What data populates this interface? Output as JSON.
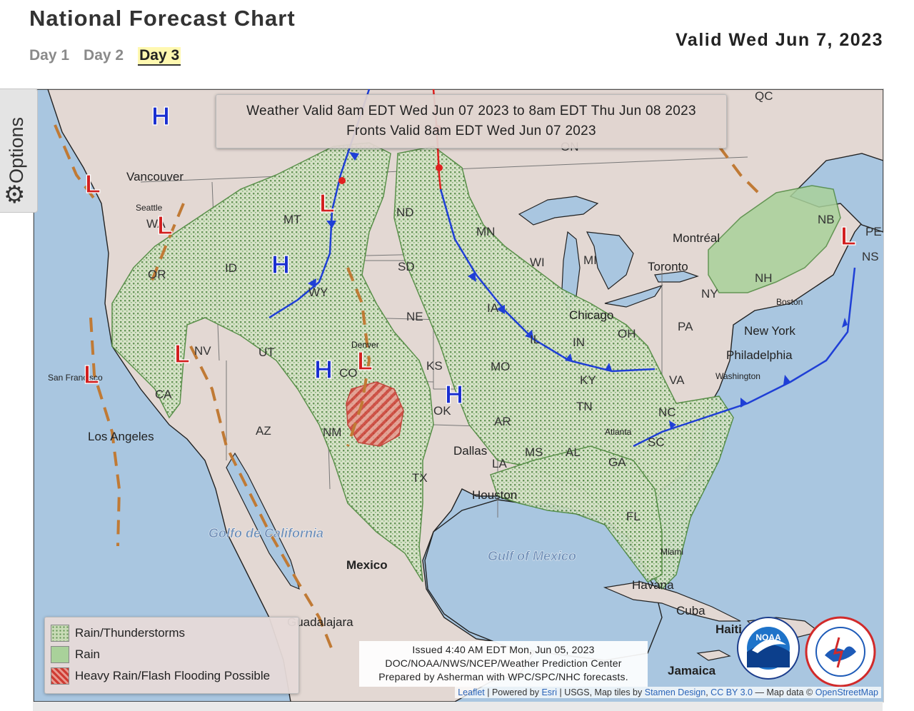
{
  "header": {
    "title": "National Forecast Chart",
    "valid": "Valid Wed Jun 7, 2023",
    "tabs": [
      {
        "label": "Day 1",
        "active": false
      },
      {
        "label": "Day 2",
        "active": false
      },
      {
        "label": "Day 3",
        "active": true
      }
    ]
  },
  "options": {
    "label": "Options",
    "icon": "gear-icon"
  },
  "info_box": {
    "line1": "Weather Valid 8am EDT Wed Jun 07 2023 to 8am EDT Thu Jun 08 2023",
    "line2": "Fronts Valid 8am EDT Wed Jun 07 2023"
  },
  "legend": {
    "items": [
      {
        "label": "Rain/Thunderstorms",
        "color": "#7fb46f"
      },
      {
        "label": "Rain",
        "color": "#a9d19a"
      },
      {
        "label": "Heavy Rain/Flash Flooding Possible",
        "color": "#d9534f"
      }
    ]
  },
  "issued": {
    "line1": "Issued 4:40 AM EDT Mon, Jun 05, 2023",
    "line2": "DOC/NOAA/NWS/NCEP/Weather Prediction Center",
    "line3": "Prepared by Asherman with WPC/SPC/NHC forecasts."
  },
  "attribution": {
    "leaflet": "Leaflet",
    "powered": "| Powered by",
    "esri": "Esri",
    "rest": "| USGS, Map tiles by",
    "stamen": "Stamen Design",
    "cc": "CC BY 3.0",
    "mapdata": "— Map data ©",
    "osm": "OpenStreetMap"
  },
  "logos": {
    "noaa": "NOAA",
    "nws": "NATIONAL WEATHER SERVICE"
  },
  "colors": {
    "water": "#a9c6e0",
    "land": "#e3d8d3",
    "rain_storms": "#7fb46f",
    "rain": "#a9d19a",
    "heavy_rain": "#d9534f",
    "cold_front": "#1f3fd6",
    "warm_front": "#e0211f",
    "trough": "#c07a35",
    "high": "#1a2fd0",
    "low": "#d21f1f"
  },
  "pressure_centers": [
    {
      "type": "H"
    },
    {
      "type": "H"
    },
    {
      "type": "H"
    },
    {
      "type": "H"
    },
    {
      "type": "L"
    },
    {
      "type": "L"
    },
    {
      "type": "L"
    },
    {
      "type": "L"
    },
    {
      "type": "L"
    },
    {
      "type": "L"
    },
    {
      "type": "L"
    }
  ],
  "places": {
    "cities": [
      "Vancouver",
      "Seattle",
      "San Francisco",
      "Los Angeles",
      "Denver",
      "Dallas",
      "Houston",
      "Chicago",
      "Toronto",
      "Montréal",
      "Boston",
      "New York",
      "Philadelphia",
      "Washington",
      "Atlanta",
      "Miami",
      "Havana",
      "Guadalajara",
      "Mexico",
      "Cuba",
      "Haiti",
      "Jamaica"
    ],
    "states": [
      "MT",
      "ND",
      "MN",
      "WI",
      "MI",
      "SD",
      "ID",
      "WY",
      "OR",
      "NV",
      "UT",
      "CO",
      "NE",
      "KS",
      "IA",
      "IL",
      "IN",
      "OH",
      "PA",
      "NY",
      "NH",
      "NB",
      "VA",
      "KY",
      "MO",
      "OK",
      "AR",
      "TN",
      "NC",
      "SC",
      "GA",
      "AL",
      "MS",
      "LA",
      "TX",
      "NM",
      "AZ",
      "CA",
      "FL",
      "WA",
      "QC",
      "NS",
      "PE",
      "ON"
    ],
    "water": [
      "Gulf of Mexico",
      "Golfo de California"
    ]
  }
}
